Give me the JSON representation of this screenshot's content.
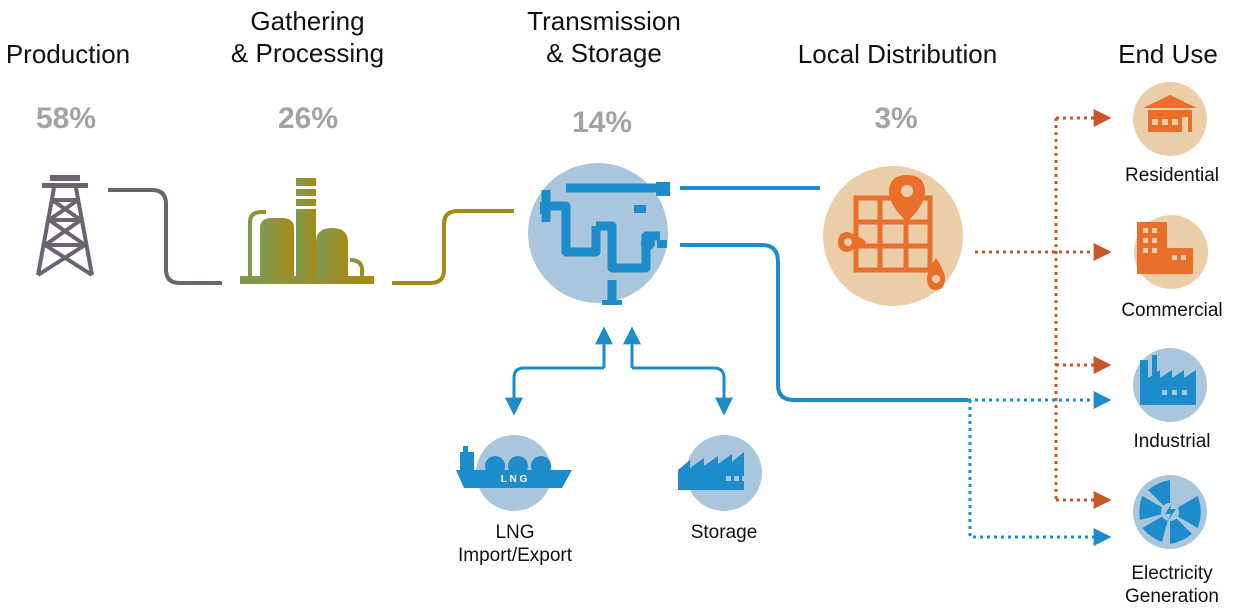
{
  "stages": [
    {
      "id": "production",
      "title": "Production",
      "percent": "58%"
    },
    {
      "id": "gathering",
      "title_line1": "Gathering",
      "title_line2": "& Processing",
      "percent": "26%"
    },
    {
      "id": "transmission",
      "title_line1": "Transmission",
      "title_line2": "& Storage",
      "percent": "14%"
    },
    {
      "id": "distribution",
      "title": "Local Distribution",
      "percent": "3%"
    },
    {
      "id": "enduse",
      "title": "End Use"
    }
  ],
  "end_uses": [
    {
      "label_line1": "Residential",
      "label_line2": ""
    },
    {
      "label_line1": "Commercial",
      "label_line2": ""
    },
    {
      "label_line1": "Industrial",
      "label_line2": ""
    },
    {
      "label_line1": "Electricity",
      "label_line2": "Generation"
    }
  ],
  "storage_links": [
    {
      "label_line1": "LNG",
      "label_line2": "Import/Export",
      "icon_text": "L N G"
    },
    {
      "label_line1": "Storage",
      "label_line2": ""
    }
  ],
  "colors": {
    "production": "#6b6470",
    "gathering": "#9a8a22",
    "transmission": "#1d8ccb",
    "distribution": "#e8702a",
    "distribution_line": "#c9552a",
    "circle_blue": "#a9c6dc",
    "circle_tan": "#ebcda8",
    "percent": "#a3a3a3"
  },
  "icons": {
    "production": "oil-derrick-icon",
    "gathering": "processing-plant-icon",
    "transmission": "pipeline-valve-icon",
    "distribution": "map-pin-icon",
    "lng": "lng-ship-icon",
    "storage": "storage-facility-icon",
    "residential": "house-icon",
    "commercial": "office-building-icon",
    "industrial": "factory-icon",
    "electricity": "turbine-icon"
  }
}
